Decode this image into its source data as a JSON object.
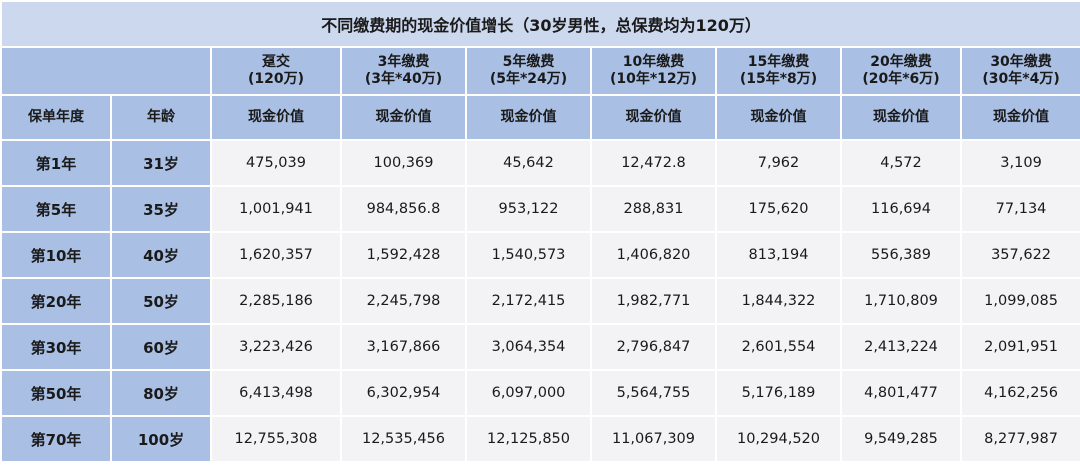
{
  "title": "不同缴费期的现金价值增长（30岁男性，总保费均为120万）",
  "plans": [
    {
      "name": "趸交",
      "detail": "(120万)"
    },
    {
      "name": "3年缴费",
      "detail": "(3年*40万)"
    },
    {
      "name": "5年缴费",
      "detail": "(5年*24万)"
    },
    {
      "name": "10年缴费",
      "detail": "(10年*12万)"
    },
    {
      "name": "15年缴费",
      "detail": "(15年*8万)"
    },
    {
      "name": "20年缴费",
      "detail": "(20年*6万)"
    },
    {
      "name": "30年缴费",
      "detail": "(30年*4万)"
    }
  ],
  "row_headers": [
    "保单年度",
    "年龄"
  ],
  "value_headers": [
    "现金价值",
    "现金价值",
    "现金价值",
    "现金价值",
    "现金价值",
    "现金价值",
    "现金价值"
  ],
  "rows": [
    {
      "year": "第1年",
      "age": "31岁",
      "values": [
        "475,039",
        "100,369",
        "45,642",
        "12,472.8",
        "7,962",
        "4,572",
        "3,109"
      ]
    },
    {
      "year": "第5年",
      "age": "35岁",
      "values": [
        "1,001,941",
        "984,856.8",
        "953,122",
        "288,831",
        "175,620",
        "116,694",
        "77,134"
      ]
    },
    {
      "year": "第10年",
      "age": "40岁",
      "values": [
        "1,620,357",
        "1,592,428",
        "1,540,573",
        "1,406,820",
        "813,194",
        "556,389",
        "357,622"
      ]
    },
    {
      "year": "第20年",
      "age": "50岁",
      "values": [
        "2,285,186",
        "2,245,798",
        "2,172,415",
        "1,982,771",
        "1,844,322",
        "1,710,809",
        "1,099,085"
      ]
    },
    {
      "year": "第30年",
      "age": "60岁",
      "values": [
        "3,223,426",
        "3,167,866",
        "3,064,354",
        "2,796,847",
        "2,601,554",
        "2,413,224",
        "2,091,951"
      ]
    },
    {
      "year": "第50年",
      "age": "80岁",
      "values": [
        "6,413,498",
        "6,302,954",
        "6,097,000",
        "5,564,755",
        "5,176,189",
        "4,801,477",
        "4,162,256"
      ]
    },
    {
      "year": "第70年",
      "age": "100岁",
      "values": [
        "12,755,308",
        "12,535,456",
        "12,125,850",
        "11,067,309",
        "10,294,520",
        "9,549,285",
        "8,277,987"
      ]
    }
  ]
}
